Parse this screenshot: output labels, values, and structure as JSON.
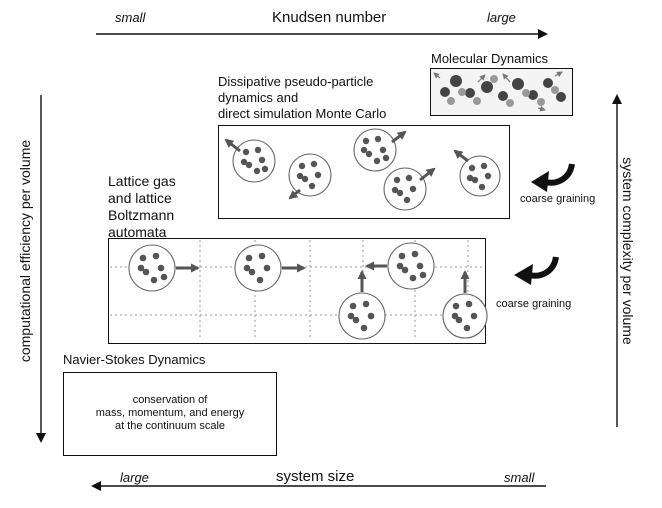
{
  "top_axis": {
    "title": "Knudsen number",
    "left_end": "small",
    "right_end": "large"
  },
  "bottom_axis": {
    "title": "system size",
    "left_end": "large",
    "right_end": "small"
  },
  "left_axis": {
    "title": "computational efficiency per volume"
  },
  "right_axis": {
    "title": "system complexity per volume"
  },
  "levels": {
    "molecular_dynamics": {
      "label": "Molecular Dynamics"
    },
    "dpd_dsmc": {
      "label_lines": [
        "Dissipative pseudo-particle",
        "dynamics and",
        "direct simulation Monte Carlo"
      ]
    },
    "lattice": {
      "label_lines": [
        "Lattice gas",
        "and lattice",
        "Boltzmann",
        "automata"
      ]
    },
    "navier_stokes": {
      "label": "Navier-Stokes Dynamics",
      "box_lines": [
        "conservation of",
        "mass, momentum, and energy",
        "at the continuum scale"
      ]
    }
  },
  "transitions": {
    "upper": "coarse graining",
    "lower": "coarse graining"
  }
}
